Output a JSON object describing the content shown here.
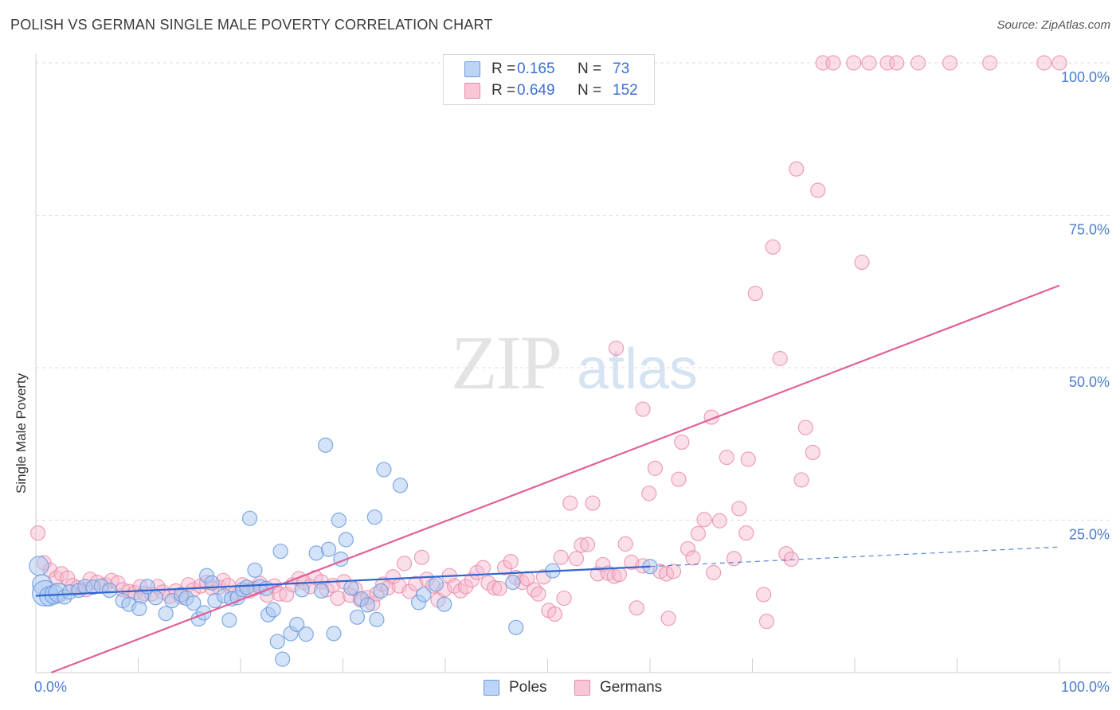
{
  "title": "POLISH VS GERMAN SINGLE MALE POVERTY CORRELATION CHART",
  "source": "Source: ZipAtlas.com",
  "watermark": {
    "zip": "ZIP",
    "atlas": "atlas"
  },
  "legend": {
    "poles": {
      "r_label": "R =",
      "r_value": "0.165",
      "n_label": "N =",
      "n_value": "73"
    },
    "germans": {
      "r_label": "R =",
      "r_value": "0.649",
      "n_label": "N =",
      "n_value": "152"
    }
  },
  "bottom_legend": {
    "poles": "Poles",
    "germans": "Germans"
  },
  "colors": {
    "poles_fill": "#a9c8f0",
    "poles_stroke": "#6b9be0",
    "poles_line": "#2f66d0",
    "germans_fill": "#f6b9cb",
    "germans_stroke": "#e98aa8",
    "germans_line": "#e0609a",
    "tick_label": "#4a7cd0",
    "grid": "#dddddd"
  },
  "chart_data": {
    "type": "scatter",
    "title": "POLISH VS GERMAN SINGLE MALE POVERTY CORRELATION CHART",
    "xlabel": "",
    "ylabel": "Single Male Poverty",
    "xlim": [
      0,
      100
    ],
    "ylim": [
      0,
      100
    ],
    "x_tick_labels": [
      "0.0%",
      "100.0%"
    ],
    "y_tick_labels": [
      "25.0%",
      "50.0%",
      "75.0%",
      "100.0%"
    ],
    "y_ticks": [
      25,
      50,
      75,
      100
    ],
    "grid": "horizontal dashed",
    "legend_position": "top-center",
    "series": [
      {
        "name": "Poles",
        "r": 0.165,
        "n": 73,
        "trend": {
          "x": [
            0,
            60
          ],
          "y": [
            12.6,
            17.4
          ]
        },
        "trend_extended": {
          "x": [
            60,
            100
          ],
          "y": [
            17.4,
            20.6
          ]
        },
        "points": [
          [
            0.3,
            17.5
          ],
          [
            0.6,
            14.5
          ],
          [
            0.9,
            13.0
          ],
          [
            1.3,
            12.5
          ],
          [
            1.8,
            12.8
          ],
          [
            2.2,
            13.1
          ],
          [
            2.8,
            12.4
          ],
          [
            3.3,
            13.2
          ],
          [
            4.2,
            13.5
          ],
          [
            4.8,
            14.1
          ],
          [
            5.6,
            14.0
          ],
          [
            6.4,
            14.2
          ],
          [
            7.2,
            13.5
          ],
          [
            8.5,
            11.8
          ],
          [
            9.1,
            11.2
          ],
          [
            10.3,
            12.5
          ],
          [
            10.1,
            10.5
          ],
          [
            10.9,
            14.1
          ],
          [
            11.7,
            12.3
          ],
          [
            12.7,
            9.7
          ],
          [
            13.3,
            11.8
          ],
          [
            14.2,
            12.8
          ],
          [
            14.7,
            12.2
          ],
          [
            15.4,
            11.4
          ],
          [
            15.9,
            8.8
          ],
          [
            16.4,
            9.8
          ],
          [
            16.7,
            15.9
          ],
          [
            17.2,
            14.7
          ],
          [
            17.5,
            11.8
          ],
          [
            18.4,
            12.6
          ],
          [
            18.9,
            8.6
          ],
          [
            19.1,
            12.1
          ],
          [
            19.7,
            12.3
          ],
          [
            20.2,
            13.6
          ],
          [
            20.6,
            14.0
          ],
          [
            20.9,
            25.3
          ],
          [
            21.4,
            16.8
          ],
          [
            21.9,
            14.1
          ],
          [
            22.5,
            13.8
          ],
          [
            22.7,
            9.5
          ],
          [
            23.2,
            10.3
          ],
          [
            23.6,
            5.1
          ],
          [
            24.1,
            2.2
          ],
          [
            23.9,
            19.9
          ],
          [
            24.9,
            6.4
          ],
          [
            25.5,
            7.9
          ],
          [
            26.0,
            13.6
          ],
          [
            26.4,
            6.3
          ],
          [
            27.4,
            19.6
          ],
          [
            27.9,
            13.4
          ],
          [
            28.3,
            37.3
          ],
          [
            28.6,
            20.2
          ],
          [
            29.1,
            6.4
          ],
          [
            29.6,
            25.0
          ],
          [
            29.8,
            18.6
          ],
          [
            30.3,
            21.8
          ],
          [
            30.8,
            13.9
          ],
          [
            31.4,
            9.1
          ],
          [
            31.8,
            12.1
          ],
          [
            32.4,
            11.1
          ],
          [
            33.1,
            25.5
          ],
          [
            33.3,
            8.7
          ],
          [
            33.7,
            13.4
          ],
          [
            34.0,
            33.3
          ],
          [
            35.6,
            30.7
          ],
          [
            37.4,
            11.5
          ],
          [
            37.9,
            12.8
          ],
          [
            39.1,
            14.5
          ],
          [
            39.9,
            11.2
          ],
          [
            46.6,
            14.8
          ],
          [
            46.9,
            7.4
          ],
          [
            50.5,
            16.7
          ],
          [
            60.0,
            17.4
          ]
        ]
      },
      {
        "name": "Germans",
        "r": 0.649,
        "n": 152,
        "trend": {
          "x": [
            1.5,
            100
          ],
          "y": [
            0,
            63.5
          ]
        },
        "points": [
          [
            0.2,
            22.9
          ],
          [
            0.8,
            18.0
          ],
          [
            1.4,
            16.8
          ],
          [
            2.0,
            15.5
          ],
          [
            2.5,
            16.2
          ],
          [
            3.1,
            15.5
          ],
          [
            3.6,
            14.3
          ],
          [
            4.1,
            13.9
          ],
          [
            4.9,
            13.6
          ],
          [
            5.3,
            15.3
          ],
          [
            6.0,
            14.8
          ],
          [
            6.8,
            14.4
          ],
          [
            7.4,
            15.1
          ],
          [
            8.0,
            14.7
          ],
          [
            8.5,
            13.6
          ],
          [
            9.1,
            13.3
          ],
          [
            9.7,
            13.1
          ],
          [
            10.2,
            14.1
          ],
          [
            10.6,
            13.0
          ],
          [
            11.3,
            12.9
          ],
          [
            11.9,
            14.1
          ],
          [
            12.4,
            13.2
          ],
          [
            13.1,
            12.5
          ],
          [
            13.7,
            13.4
          ],
          [
            14.2,
            12.4
          ],
          [
            14.9,
            14.4
          ],
          [
            15.4,
            13.6
          ],
          [
            16.1,
            14.2
          ],
          [
            16.7,
            14.8
          ],
          [
            17.2,
            13.9
          ],
          [
            17.9,
            14.0
          ],
          [
            18.3,
            15.1
          ],
          [
            18.8,
            14.3
          ],
          [
            19.5,
            13.1
          ],
          [
            20.2,
            14.4
          ],
          [
            20.9,
            13.4
          ],
          [
            21.3,
            13.8
          ],
          [
            21.9,
            14.6
          ],
          [
            22.6,
            12.7
          ],
          [
            23.3,
            14.2
          ],
          [
            23.8,
            12.9
          ],
          [
            24.5,
            12.8
          ],
          [
            25.1,
            14.4
          ],
          [
            25.7,
            15.4
          ],
          [
            26.2,
            14.8
          ],
          [
            26.8,
            14.1
          ],
          [
            27.3,
            15.6
          ],
          [
            27.9,
            14.9
          ],
          [
            28.4,
            13.6
          ],
          [
            29.0,
            14.3
          ],
          [
            29.5,
            12.2
          ],
          [
            30.1,
            14.9
          ],
          [
            30.7,
            12.7
          ],
          [
            31.2,
            13.7
          ],
          [
            31.7,
            11.9
          ],
          [
            32.4,
            12.3
          ],
          [
            32.9,
            11.3
          ],
          [
            33.3,
            12.9
          ],
          [
            33.9,
            14.5
          ],
          [
            34.4,
            13.9
          ],
          [
            34.9,
            15.7
          ],
          [
            35.5,
            14.2
          ],
          [
            36.0,
            17.9
          ],
          [
            36.5,
            13.3
          ],
          [
            37.1,
            14.6
          ],
          [
            37.7,
            18.9
          ],
          [
            38.2,
            15.3
          ],
          [
            38.8,
            14.2
          ],
          [
            39.3,
            11.9
          ],
          [
            39.9,
            13.6
          ],
          [
            40.4,
            15.9
          ],
          [
            40.9,
            14.2
          ],
          [
            41.5,
            13.4
          ],
          [
            42.0,
            14.1
          ],
          [
            42.6,
            15.2
          ],
          [
            43.1,
            16.4
          ],
          [
            43.7,
            17.2
          ],
          [
            44.2,
            14.7
          ],
          [
            44.8,
            13.9
          ],
          [
            45.3,
            13.8
          ],
          [
            45.8,
            17.2
          ],
          [
            46.4,
            18.2
          ],
          [
            46.9,
            15.6
          ],
          [
            47.5,
            14.8
          ],
          [
            48.0,
            15.4
          ],
          [
            48.7,
            13.6
          ],
          [
            49.1,
            12.9
          ],
          [
            49.6,
            15.7
          ],
          [
            50.1,
            10.2
          ],
          [
            50.7,
            9.6
          ],
          [
            51.3,
            18.9
          ],
          [
            51.6,
            12.2
          ],
          [
            52.2,
            27.8
          ],
          [
            52.8,
            18.7
          ],
          [
            53.3,
            20.9
          ],
          [
            53.9,
            21.0
          ],
          [
            54.4,
            27.8
          ],
          [
            54.9,
            16.2
          ],
          [
            55.4,
            17.7
          ],
          [
            55.9,
            16.3
          ],
          [
            56.5,
            15.8
          ],
          [
            57.0,
            16.1
          ],
          [
            57.6,
            21.1
          ],
          [
            58.2,
            18.1
          ],
          [
            58.7,
            10.6
          ],
          [
            59.3,
            17.5
          ],
          [
            59.9,
            29.4
          ],
          [
            60.5,
            33.5
          ],
          [
            61.0,
            16.6
          ],
          [
            61.6,
            16.2
          ],
          [
            61.8,
            8.9
          ],
          [
            62.3,
            16.6
          ],
          [
            62.8,
            31.7
          ],
          [
            63.1,
            37.8
          ],
          [
            63.7,
            20.3
          ],
          [
            64.2,
            18.8
          ],
          [
            64.7,
            22.8
          ],
          [
            65.3,
            25.1
          ],
          [
            66.0,
            41.9
          ],
          [
            66.2,
            16.4
          ],
          [
            66.8,
            24.9
          ],
          [
            67.5,
            35.3
          ],
          [
            68.2,
            18.7
          ],
          [
            68.7,
            26.9
          ],
          [
            69.4,
            22.9
          ],
          [
            69.6,
            35.0
          ],
          [
            70.3,
            62.2
          ],
          [
            71.1,
            12.8
          ],
          [
            71.4,
            8.4
          ],
          [
            72.0,
            69.8
          ],
          [
            72.7,
            51.5
          ],
          [
            73.3,
            19.5
          ],
          [
            73.8,
            18.6
          ],
          [
            74.3,
            82.6
          ],
          [
            74.8,
            31.6
          ],
          [
            75.2,
            40.2
          ],
          [
            75.9,
            36.1
          ],
          [
            76.4,
            79.1
          ],
          [
            59.3,
            43.2
          ],
          [
            56.7,
            53.2
          ],
          [
            76.9,
            100
          ],
          [
            77.9,
            100
          ],
          [
            79.9,
            100
          ],
          [
            81.4,
            100
          ],
          [
            83.2,
            100
          ],
          [
            84.1,
            100
          ],
          [
            86.2,
            100
          ],
          [
            89.3,
            100
          ],
          [
            93.2,
            100
          ],
          [
            98.5,
            100
          ],
          [
            80.7,
            67.3
          ],
          [
            100,
            100
          ]
        ]
      }
    ]
  }
}
